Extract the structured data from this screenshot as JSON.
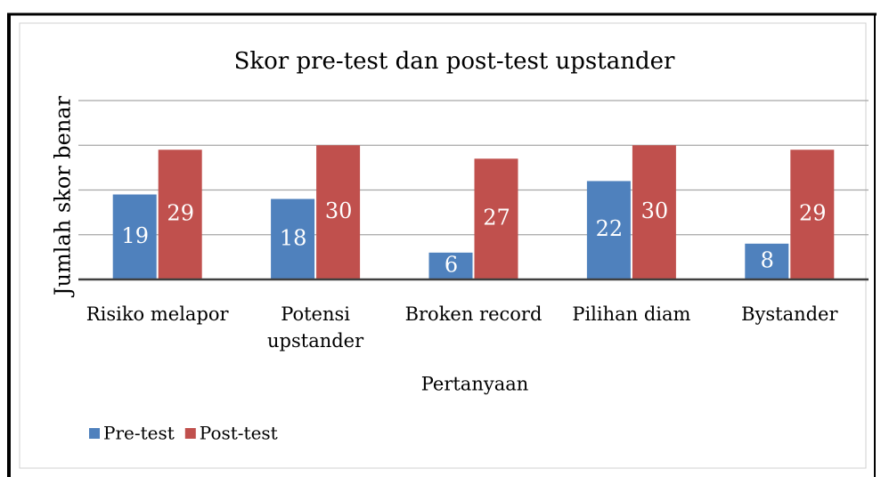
{
  "chart_data": {
    "type": "bar",
    "title": "Skor pre-test dan post-test upstander",
    "x_label": "Pertanyaan",
    "y_label": "Jumlah skor benar",
    "categories": [
      "Risiko melapor",
      "Potensi upstander",
      "Broken record",
      "Pilihan diam",
      "Bystander"
    ],
    "series": [
      {
        "name": "Pre-test",
        "color": "#4f81bd",
        "values": [
          19,
          18,
          6,
          22,
          8
        ]
      },
      {
        "name": "Post-test",
        "color": "#c0504d",
        "values": [
          29,
          30,
          27,
          30,
          29
        ]
      }
    ],
    "ylim": [
      0,
      40
    ],
    "yticks": [
      0,
      10,
      20,
      30,
      40
    ],
    "grid": true,
    "legend": "bottom-left"
  }
}
